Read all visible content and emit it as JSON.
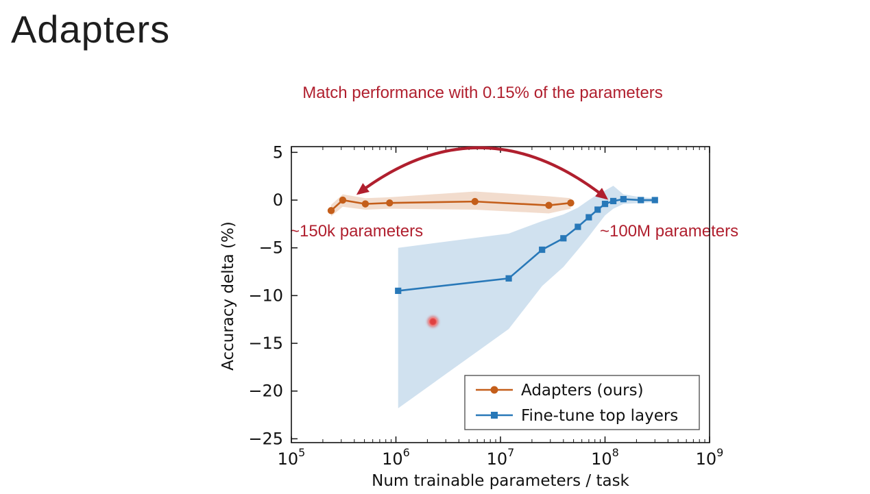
{
  "slide": {
    "title": "Adapters",
    "annotation": "Match performance with 0.15% of the parameters",
    "left_label": "~150k parameters",
    "right_label": "~100M parameters",
    "colors": {
      "annotation_red": "#b01f2e",
      "adapters_orange": "#c45e1a",
      "finetune_blue": "#2878b8",
      "background": "#ffffff"
    }
  },
  "chart_data": {
    "type": "line",
    "title": "",
    "xlabel": "Num trainable parameters / task",
    "ylabel": "Accuracy delta (%)",
    "x_scale": "log",
    "xlim": [
      100000.0,
      1000000000.0
    ],
    "ylim": [
      -26,
      6
    ],
    "yticks": [
      5,
      0,
      -5,
      -10,
      -15,
      -20,
      -25
    ],
    "xtick_exponents": [
      5,
      6,
      7,
      8,
      9
    ],
    "legend_position": "lower right",
    "series": [
      {
        "name": "Adapters (ours)",
        "color": "#c45e1a",
        "marker": "circle",
        "x": [
          240000.0,
          310000.0,
          510000.0,
          870000.0,
          5700000.0,
          29000000.0,
          47000000.0
        ],
        "y": [
          -1.1,
          0.0,
          -0.4,
          -0.3,
          -0.15,
          -0.55,
          -0.3
        ],
        "band_upper": [
          -0.5,
          0.6,
          0.2,
          0.3,
          0.9,
          0.4,
          0.2
        ],
        "band_lower": [
          -1.7,
          -0.7,
          -1.0,
          -0.9,
          -1.0,
          -1.4,
          -0.9
        ]
      },
      {
        "name": "Fine-tune top layers",
        "color": "#2878b8",
        "marker": "square",
        "x": [
          1050000.0,
          12000000.0,
          25000000.0,
          40000000.0,
          55000000.0,
          70000000.0,
          85000000.0,
          100000000.0,
          120000000.0,
          150000000.0,
          220000000.0,
          300000000.0
        ],
        "y": [
          -9.5,
          -8.2,
          -5.2,
          -4.0,
          -2.8,
          -1.8,
          -1.0,
          -0.4,
          -0.1,
          0.1,
          0.0,
          0.0
        ],
        "band_upper": [
          -5.0,
          -3.5,
          -2.2,
          -1.5,
          -0.8,
          0.0,
          0.6,
          1.0,
          1.5,
          0.6,
          0.3,
          0.2
        ],
        "band_lower": [
          -21.8,
          -13.5,
          -9.0,
          -7.0,
          -5.2,
          -3.8,
          -2.6,
          -1.6,
          -0.9,
          -0.4,
          -0.3,
          -0.2
        ]
      }
    ]
  }
}
